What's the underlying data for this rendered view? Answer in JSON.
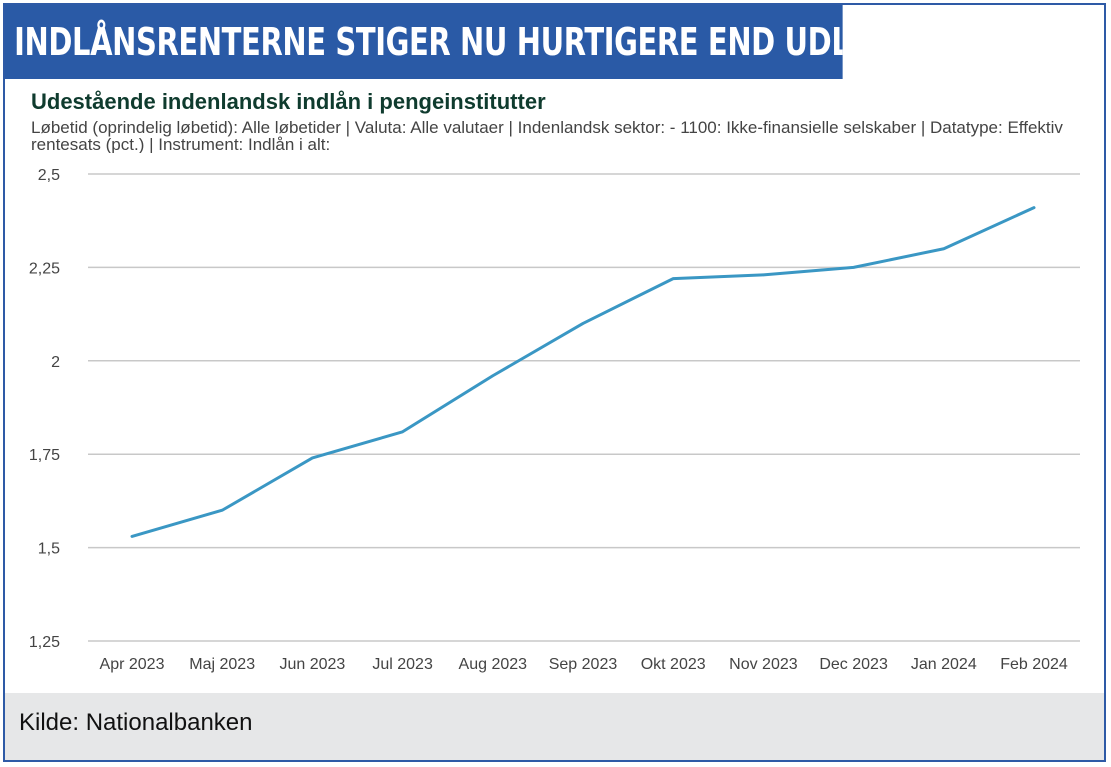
{
  "header": {
    "title": "INDLÅNSRENTERNE STIGER NU HURTIGERE END UDLÅNSRENTERNE"
  },
  "footer": {
    "source": "Kilde: Nationalbanken"
  },
  "colors": {
    "banner": "#2a5aa6",
    "line": "#3a97c4",
    "grid": "#c8c8c8",
    "footer": "#e6e7e8"
  },
  "chart_data": {
    "type": "line",
    "title": "Udestående indenlandsk indlån i pengeinstitutter",
    "subtitle": "Løbetid (oprindelig løbetid): Alle løbetider | Valuta: Alle valutaer | Indenlandsk sektor: - 1100: Ikke-finansielle selskaber | Datatype: Effektiv rentesats (pct.) | Instrument: Indlån i alt:",
    "xlabel": "",
    "ylabel": "",
    "categories": [
      "Apr 2023",
      "Maj 2023",
      "Jun 2023",
      "Jul 2023",
      "Aug 2023",
      "Sep 2023",
      "Okt 2023",
      "Nov 2023",
      "Dec 2023",
      "Jan 2024",
      "Feb 2024"
    ],
    "series": [
      {
        "name": "Indlån i alt",
        "values": [
          1.53,
          1.6,
          1.74,
          1.81,
          1.96,
          2.1,
          2.22,
          2.23,
          2.25,
          2.3,
          2.41
        ]
      }
    ],
    "ylim": [
      1.25,
      2.5
    ],
    "yticks": [
      1.25,
      1.5,
      1.75,
      2,
      2.25,
      2.5
    ],
    "ytick_labels": [
      "1,25",
      "1,5",
      "1,75",
      "2",
      "2,25",
      "2,5"
    ],
    "grid": true
  }
}
